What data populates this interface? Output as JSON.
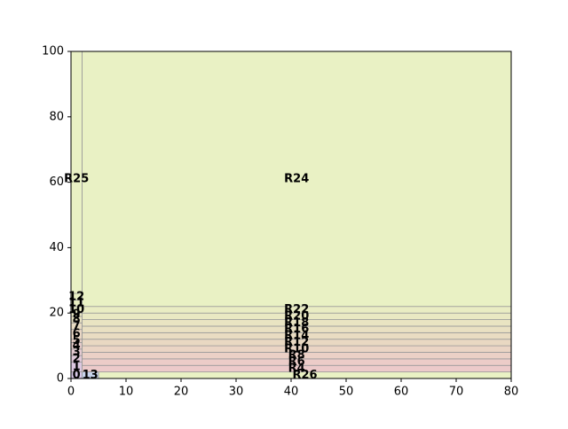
{
  "chart_data": {
    "type": "rectangles",
    "xlim": [
      0,
      80
    ],
    "ylim": [
      0,
      100
    ],
    "xticks": [
      0,
      10,
      20,
      30,
      40,
      50,
      60,
      70,
      80
    ],
    "yticks": [
      0,
      20,
      40,
      60,
      80,
      100
    ],
    "rects": [
      {
        "label": "R24",
        "x": [
          2,
          80
        ],
        "y": [
          22,
          100
        ],
        "color": "#e9f1c4"
      },
      {
        "label": "R25",
        "x": [
          0,
          2
        ],
        "y": [
          22,
          100
        ],
        "color": "#e9f1c4"
      },
      {
        "label": "R26",
        "x": [
          5,
          80
        ],
        "y": [
          0,
          2
        ],
        "color": "#e9f1c4"
      },
      {
        "label": "R4",
        "x": [
          2,
          80
        ],
        "y": [
          2,
          4
        ],
        "color": "#eccaca"
      },
      {
        "label": "R6",
        "x": [
          2,
          80
        ],
        "y": [
          4,
          6
        ],
        "color": "#ecccc8"
      },
      {
        "label": "R8",
        "x": [
          2,
          80
        ],
        "y": [
          6,
          8
        ],
        "color": "#ebd0c6"
      },
      {
        "label": "R10",
        "x": [
          2,
          80
        ],
        "y": [
          8,
          10
        ],
        "color": "#ead4c4"
      },
      {
        "label": "R12",
        "x": [
          2,
          80
        ],
        "y": [
          10,
          12
        ],
        "color": "#e9d8c2"
      },
      {
        "label": "R14",
        "x": [
          2,
          80
        ],
        "y": [
          12,
          14
        ],
        "color": "#e9dcc2"
      },
      {
        "label": "R16",
        "x": [
          2,
          80
        ],
        "y": [
          14,
          16
        ],
        "color": "#e9e0c2"
      },
      {
        "label": "R18",
        "x": [
          2,
          80
        ],
        "y": [
          16,
          18
        ],
        "color": "#e9e4c2"
      },
      {
        "label": "R20",
        "x": [
          2,
          80
        ],
        "y": [
          18,
          20
        ],
        "color": "#e9e8c3"
      },
      {
        "label": "R22",
        "x": [
          2,
          80
        ],
        "y": [
          20,
          22
        ],
        "color": "#e9ecc3"
      },
      {
        "label": "13",
        "x": [
          2,
          5
        ],
        "y": [
          0,
          2
        ],
        "color": "#c8d4ec"
      },
      {
        "label": "0",
        "x": [
          0,
          2
        ],
        "y": [
          0,
          2
        ],
        "color": "#d8c8e8"
      },
      {
        "label": "1",
        "x": [
          0,
          2
        ],
        "y": [
          2,
          5
        ],
        "color": "#dcc8e0"
      },
      {
        "label": "2",
        "x": [
          0,
          2
        ],
        "y": [
          5,
          7
        ],
        "color": "#e0c8d8"
      },
      {
        "label": "3",
        "x": [
          0,
          2
        ],
        "y": [
          7,
          9
        ],
        "color": "#e4cad0"
      },
      {
        "label": "4",
        "x": [
          0,
          2
        ],
        "y": [
          9,
          11
        ],
        "color": "#e6ccca"
      },
      {
        "label": "5",
        "x": [
          0,
          2
        ],
        "y": [
          11,
          12
        ],
        "color": "#e8d0c6"
      },
      {
        "label": "6",
        "x": [
          0,
          2
        ],
        "y": [
          12,
          15
        ],
        "color": "#e8d6c4"
      },
      {
        "label": "7",
        "x": [
          0,
          2
        ],
        "y": [
          15,
          17
        ],
        "color": "#e8dcc2"
      },
      {
        "label": "8",
        "x": [
          0,
          2
        ],
        "y": [
          17,
          19
        ],
        "color": "#e8e2c2"
      },
      {
        "label": "9",
        "x": [
          0,
          2
        ],
        "y": [
          19,
          20
        ],
        "color": "#e8e6c2"
      },
      {
        "label": "10",
        "x": [
          0,
          2
        ],
        "y": [
          20,
          22
        ],
        "color": "#e8eac3"
      },
      {
        "label": "11",
        "x": [
          0,
          2
        ],
        "y": [
          22,
          24
        ],
        "color": "#e9eec3"
      },
      {
        "label": "12",
        "x": [
          0,
          2
        ],
        "y": [
          24,
          26
        ],
        "color": "#e9f0c4"
      }
    ]
  }
}
